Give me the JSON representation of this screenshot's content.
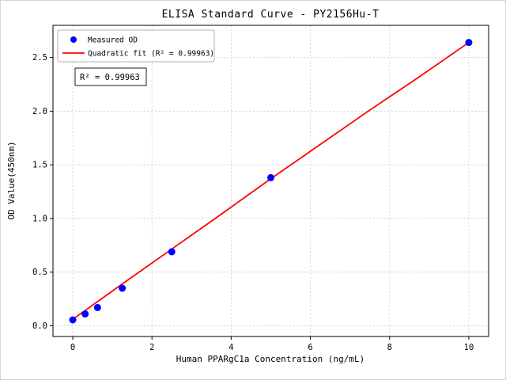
{
  "chart_data": {
    "type": "scatter",
    "title": "ELISA Standard Curve - PY2156Hu-T",
    "xlabel": "Human PPARgC1a Concentration (ng/mL)",
    "ylabel": "OD Value(450nm)",
    "xlim": [
      -0.5,
      10.5
    ],
    "ylim": [
      -0.1,
      2.8
    ],
    "x_ticks": [
      0,
      2,
      4,
      6,
      8,
      10
    ],
    "x_tick_labels": [
      "0",
      "2",
      "4",
      "6",
      "8",
      "10"
    ],
    "y_ticks": [
      0.0,
      0.5,
      1.0,
      1.5,
      2.0,
      2.5
    ],
    "y_tick_labels": [
      "0.0",
      "0.5",
      "1.0",
      "1.5",
      "2.0",
      "2.5"
    ],
    "grid": true,
    "legend_position": "upper left",
    "series": [
      {
        "name": "Measured OD",
        "type": "scatter",
        "color": "#0000ff",
        "x": [
          0,
          0.3125,
          0.625,
          1.25,
          2.5,
          5,
          10
        ],
        "y": [
          0.055,
          0.11,
          0.17,
          0.35,
          0.69,
          1.38,
          2.64
        ]
      },
      {
        "name": "Quadratic fit (R² = 0.99963)",
        "type": "line",
        "color": "#ff0000",
        "x": [
          0,
          1.25,
          2.5,
          3.75,
          5,
          6.25,
          7.5,
          8.75,
          10
        ],
        "y": [
          0.06,
          0.39,
          0.715,
          1.04,
          1.37,
          1.69,
          2.01,
          2.32,
          2.64
        ]
      }
    ],
    "annotation": {
      "text": "R² = 0.99963"
    },
    "r_squared": "0.99963"
  }
}
